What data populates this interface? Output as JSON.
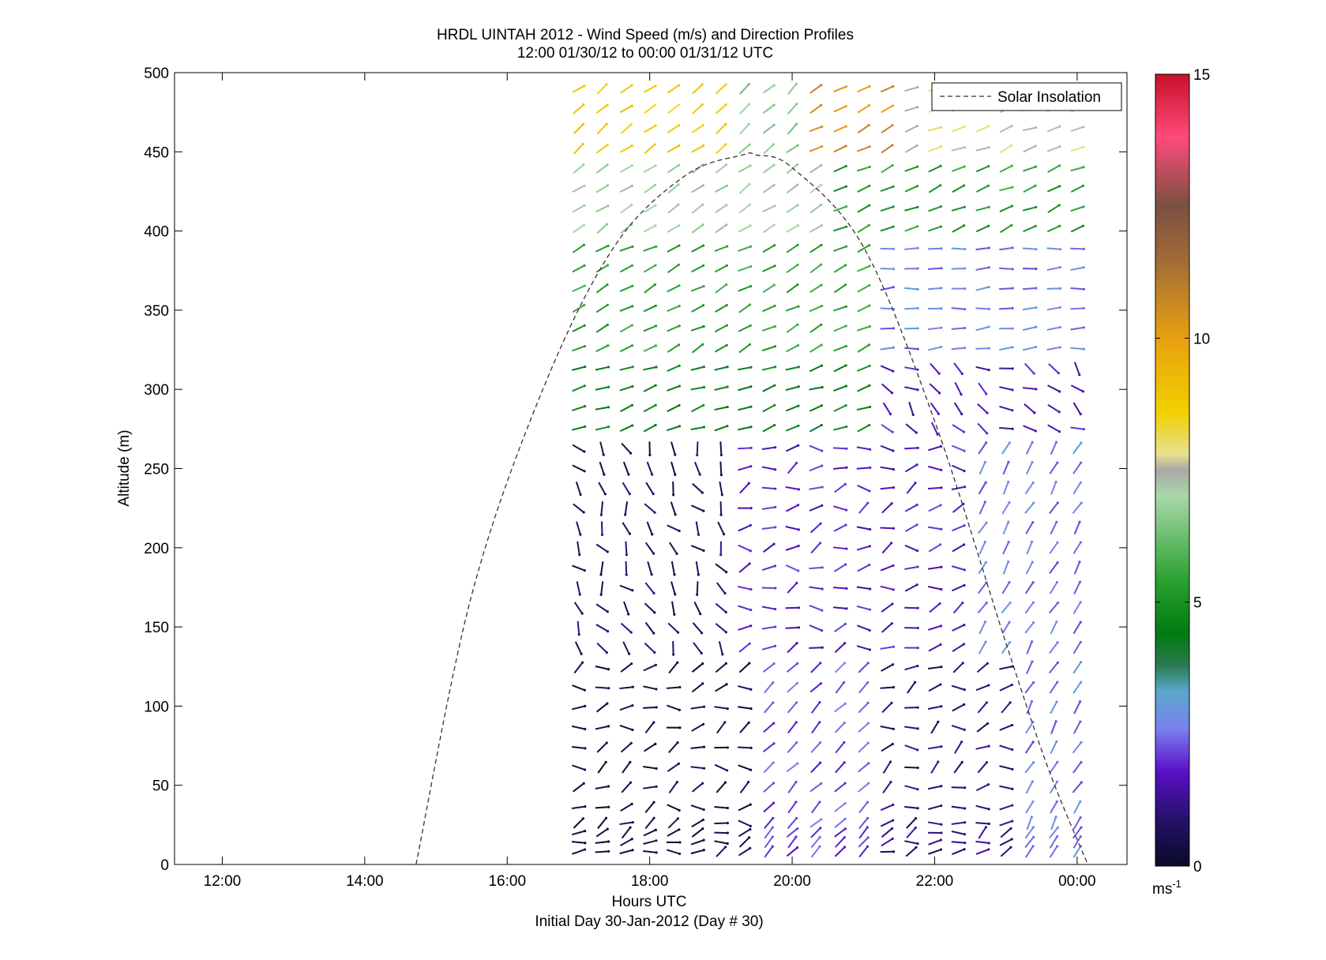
{
  "chart_data": {
    "type": "quiver",
    "title": "HRDL UINTAH 2012 - Wind Speed (m/s) and Direction Profiles",
    "subtitle": "12:00 01/30/12 to 00:00 01/31/12  UTC",
    "xlabel": "Hours UTC",
    "xlabel2": "Initial Day 30-Jan-2012 (Day # 30)",
    "ylabel": "Altitude (m)",
    "xlim": [
      11.33,
      24.7
    ],
    "ylim": [
      0,
      500
    ],
    "x_ticks": [
      12,
      14,
      16,
      18,
      20,
      22,
      24
    ],
    "x_tick_labels": [
      "12:00",
      "14:00",
      "16:00",
      "18:00",
      "20:00",
      "22:00",
      "00:00"
    ],
    "y_ticks": [
      0,
      50,
      100,
      150,
      200,
      250,
      300,
      350,
      400,
      450,
      500
    ],
    "y_tick_labels": [
      "0",
      "50",
      "100",
      "150",
      "200",
      "250",
      "300",
      "350",
      "400",
      "450",
      "500"
    ],
    "legend": {
      "label": "Solar Insolation",
      "position": "top-right",
      "line_style": "dashed",
      "color": "#000000"
    },
    "solar_insolation": {
      "x": [
        14.72,
        15.5,
        16.5,
        17.5,
        18.5,
        19.3,
        19.5,
        20.0,
        21.0,
        22.0,
        23.0,
        23.6,
        24.15
      ],
      "y": [
        0,
        170,
        300,
        390,
        435,
        448,
        448,
        440,
        390,
        280,
        140,
        60,
        0
      ]
    },
    "colorbar": {
      "min": 0,
      "max": 15,
      "ticks": [
        0,
        5,
        10,
        15
      ],
      "tick_labels": [
        "0",
        "5",
        "10",
        "15"
      ],
      "unit_label": "ms",
      "unit_exponent": "-1",
      "stops": [
        {
          "v": 0.0,
          "color": "#0a0a2a"
        },
        {
          "v": 0.8,
          "color": "#221060"
        },
        {
          "v": 1.8,
          "color": "#5a10c8"
        },
        {
          "v": 2.6,
          "color": "#7a80ee"
        },
        {
          "v": 3.3,
          "color": "#5aa8cc"
        },
        {
          "v": 3.8,
          "color": "#2a7a50"
        },
        {
          "v": 4.4,
          "color": "#007a10"
        },
        {
          "v": 5.4,
          "color": "#2aa030"
        },
        {
          "v": 7.0,
          "color": "#a8d8a8"
        },
        {
          "v": 7.5,
          "color": "#a8a8a8"
        },
        {
          "v": 7.8,
          "color": "#e8e090"
        },
        {
          "v": 8.6,
          "color": "#f0d000"
        },
        {
          "v": 10.0,
          "color": "#e8a010"
        },
        {
          "v": 11.5,
          "color": "#a06a38"
        },
        {
          "v": 12.5,
          "color": "#7a5040"
        },
        {
          "v": 13.8,
          "color": "#ff4a7a"
        },
        {
          "v": 15.0,
          "color": "#c8102a"
        }
      ]
    },
    "grid": false,
    "wind_field": {
      "times": [
        17.0,
        17.33,
        17.67,
        18.0,
        18.33,
        18.67,
        19.0,
        19.33,
        19.67,
        20.0,
        20.33,
        20.67,
        21.0,
        21.33,
        21.67,
        22.0,
        22.33,
        22.67,
        23.0,
        23.33,
        23.67,
        24.0
      ],
      "note": "speed (m/s) and direction-to (deg, 0=east, 90=up) sampled in bands by altitude and time",
      "bands": [
        {
          "alt_min": 440,
          "alt_max": 490,
          "t_min": 17.0,
          "t_max": 19.0,
          "speed": 8.8,
          "dir": 38
        },
        {
          "alt_min": 440,
          "alt_max": 490,
          "t_min": 19.0,
          "t_max": 20.0,
          "speed": 6.6,
          "dir": 42
        },
        {
          "alt_min": 440,
          "alt_max": 490,
          "t_min": 20.0,
          "t_max": 21.6,
          "speed": 10.4,
          "dir": 30
        },
        {
          "alt_min": 440,
          "alt_max": 490,
          "t_min": 21.6,
          "t_max": 24.1,
          "speed": 7.6,
          "dir": 22
        },
        {
          "alt_min": 400,
          "alt_max": 440,
          "t_min": 17.0,
          "t_max": 20.5,
          "speed": 7.0,
          "dir": 35
        },
        {
          "alt_min": 400,
          "alt_max": 440,
          "t_min": 20.5,
          "t_max": 24.1,
          "speed": 5.3,
          "dir": 24
        },
        {
          "alt_min": 320,
          "alt_max": 400,
          "t_min": 17.0,
          "t_max": 21.0,
          "speed": 5.4,
          "dir": 28
        },
        {
          "alt_min": 320,
          "alt_max": 400,
          "t_min": 21.0,
          "t_max": 24.1,
          "speed": 2.6,
          "dir": 5
        },
        {
          "alt_min": 270,
          "alt_max": 320,
          "t_min": 17.0,
          "t_max": 21.0,
          "speed": 4.6,
          "dir": 20
        },
        {
          "alt_min": 270,
          "alt_max": 320,
          "t_min": 21.0,
          "t_max": 24.1,
          "speed": 1.7,
          "dir": -35
        },
        {
          "alt_min": 130,
          "alt_max": 270,
          "t_min": 17.0,
          "t_max": 19.0,
          "speed": 0.8,
          "dir": -60
        },
        {
          "alt_min": 130,
          "alt_max": 270,
          "t_min": 19.0,
          "t_max": 22.4,
          "speed": 1.8,
          "dir": 15
        },
        {
          "alt_min": 130,
          "alt_max": 270,
          "t_min": 22.4,
          "t_max": 24.1,
          "speed": 2.6,
          "dir": 60
        },
        {
          "alt_min": 0,
          "alt_max": 130,
          "t_min": 17.0,
          "t_max": 19.5,
          "speed": 0.4,
          "dir": 15
        },
        {
          "alt_min": 0,
          "alt_max": 130,
          "t_min": 19.5,
          "t_max": 21.0,
          "speed": 2.2,
          "dir": 45
        },
        {
          "alt_min": 0,
          "alt_max": 130,
          "t_min": 21.0,
          "t_max": 23.0,
          "speed": 1.0,
          "dir": 20
        },
        {
          "alt_min": 0,
          "alt_max": 130,
          "t_min": 23.0,
          "t_max": 24.1,
          "speed": 2.6,
          "dir": 60
        }
      ]
    }
  }
}
